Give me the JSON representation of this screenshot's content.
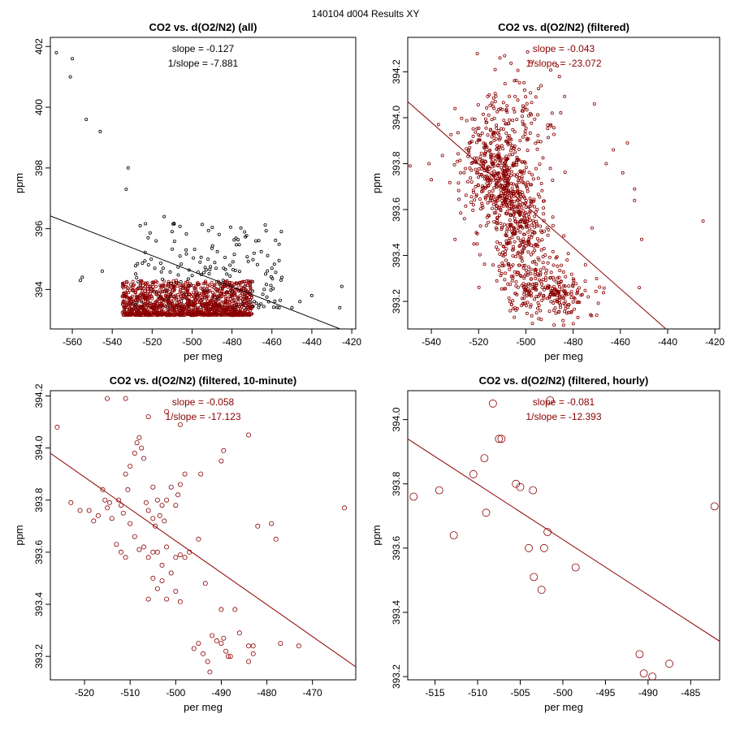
{
  "page_title": "140104   d004   Results XY",
  "colors": {
    "red": "#8b0000",
    "black": "#000000",
    "axis": "#000000"
  },
  "chart_data": [
    {
      "type": "scatter",
      "title": "CO2 vs. d(O2/N2) (all)",
      "xlabel": "per meg",
      "ylabel": "ppm",
      "xlim": [
        -571,
        -418
      ],
      "ylim": [
        392.7,
        402.3
      ],
      "xticks": [
        -560,
        -540,
        -520,
        -500,
        -480,
        -460,
        -440,
        -420
      ],
      "yticks": [
        394,
        396,
        398,
        400,
        402
      ],
      "annotations": [
        "slope = -0.127",
        "1/slope = -7.881"
      ],
      "annotation_color": "#000000",
      "fit_line": {
        "x": [
          -571,
          -418
        ],
        "y": [
          396.42,
          392.5
        ],
        "color": "#000000"
      },
      "series": [
        {
          "name": "all",
          "color": "#000000",
          "marker_size": 1.6,
          "scatter_cloud": {
            "x_range": [
              -530,
              -455
            ],
            "y_range": [
              393.4,
              396.2
            ],
            "count": 200,
            "seed": 11
          },
          "points": [
            [
              -568,
              401.8
            ],
            [
              -561,
              401.0
            ],
            [
              -560,
              401.6
            ],
            [
              -553,
              399.6
            ],
            [
              -546,
              399.2
            ],
            [
              -532,
              398.0
            ],
            [
              -533,
              397.3
            ],
            [
              -526,
              396.1
            ],
            [
              -522,
              395.7
            ],
            [
              -514,
              396.4
            ],
            [
              -555,
              394.4
            ],
            [
              -556,
              394.3
            ],
            [
              -545,
              394.6
            ],
            [
              -468,
              395.6
            ],
            [
              -425,
              394.1
            ],
            [
              -426,
              393.4
            ],
            [
              -446,
              393.6
            ],
            [
              -450,
              393.4
            ],
            [
              -460,
              394.7
            ],
            [
              -481,
              394.8
            ],
            [
              -488,
              394.7
            ],
            [
              -503,
              395.3
            ],
            [
              -510,
              395.9
            ],
            [
              -518,
              395.6
            ],
            [
              -506,
              395.1
            ],
            [
              -496,
              394.9
            ],
            [
              -492,
              395.0
            ],
            [
              -455,
              394.4
            ],
            [
              -440,
              393.8
            ]
          ]
        },
        {
          "name": "filtered",
          "color": "#8b0000",
          "marker_size": 1.6,
          "scatter_cloud": {
            "x_range": [
              -535,
              -470
            ],
            "y_range": [
              393.15,
              394.3
            ],
            "count": 1200,
            "seed": 12
          },
          "points": []
        }
      ]
    },
    {
      "type": "scatter",
      "title": "CO2 vs. d(O2/N2) (filtered)",
      "xlabel": "per meg",
      "ylabel": "ppm",
      "xlim": [
        -550,
        -418
      ],
      "ylim": [
        393.08,
        394.35
      ],
      "xticks": [
        -540,
        -520,
        -500,
        -480,
        -460,
        -440,
        -420
      ],
      "yticks": [
        393.2,
        393.4,
        393.6,
        393.8,
        394.0,
        394.2
      ],
      "annotations": [
        "slope = -0.043",
        "1/slope = -23.072"
      ],
      "annotation_color": "#8b0000",
      "fit_line": {
        "x": [
          -550,
          -438.5
        ],
        "y": [
          394.07,
          393.06
        ],
        "color": "#8b0000"
      },
      "series": [
        {
          "name": "filtered",
          "color": "#8b0000",
          "marker_size": 1.6,
          "clusters": [
            {
              "cx": -513,
              "cy": 393.76,
              "sx": 7,
              "sy": 0.12,
              "count": 380
            },
            {
              "cx": -504,
              "cy": 393.58,
              "sx": 6,
              "sy": 0.14,
              "count": 300
            },
            {
              "cx": -490,
              "cy": 393.23,
              "sx": 9,
              "sy": 0.06,
              "count": 220
            },
            {
              "cx": -505,
              "cy": 393.98,
              "sx": 10,
              "sy": 0.12,
              "count": 120
            },
            {
              "cx": -500,
              "cy": 393.38,
              "sx": 8,
              "sy": 0.08,
              "count": 90
            }
          ],
          "points": [
            [
              -549,
              393.79
            ],
            [
              -541,
              393.8
            ],
            [
              -540,
              393.73
            ],
            [
              -537,
              393.97
            ],
            [
              -530,
              394.04
            ],
            [
              -471,
              394.06
            ],
            [
              -466,
              393.8
            ],
            [
              -463,
              393.86
            ],
            [
              -459,
              393.76
            ],
            [
              -457,
              393.89
            ],
            [
              -454,
              393.64
            ],
            [
              -454,
              393.69
            ],
            [
              -451,
              393.47
            ],
            [
              -425,
              393.55
            ],
            [
              -452,
              393.26
            ],
            [
              -470,
              393.14
            ],
            [
              -478,
              393.13
            ],
            [
              -509,
              394.27
            ],
            [
              -511,
              394.26
            ],
            [
              -513,
              394.21
            ],
            [
              -526,
              393.56
            ],
            [
              -522,
              393.45
            ],
            [
              -530,
              393.47
            ],
            [
              -472,
              393.52
            ]
          ]
        }
      ]
    },
    {
      "type": "scatter",
      "title": "CO2 vs. d(O2/N2) (filtered, 10-minute)",
      "xlabel": "per meg",
      "ylabel": "ppm",
      "xlim": [
        -527.5,
        -460.5
      ],
      "ylim": [
        393.11,
        394.22
      ],
      "xticks": [
        -520,
        -510,
        -500,
        -490,
        -480,
        -470
      ],
      "yticks": [
        393.2,
        393.4,
        393.6,
        393.8,
        394.0,
        394.2
      ],
      "annotations": [
        "slope = -0.058",
        "1/slope = -17.123"
      ],
      "annotation_color": "#8b0000",
      "fit_line": {
        "x": [
          -527.5,
          -460.5
        ],
        "y": [
          393.98,
          393.16
        ],
        "color": "#8b0000"
      },
      "series": [
        {
          "name": "10-minute",
          "color": "#8b0000",
          "marker_size": 2.6,
          "points": [
            [
              -526,
              394.08
            ],
            [
              -515,
              394.19
            ],
            [
              -511,
              394.19
            ],
            [
              -506,
              394.12
            ],
            [
              -502,
              394.14
            ],
            [
              -499,
              394.09
            ],
            [
              -484,
              394.05
            ],
            [
              -523,
              393.79
            ],
            [
              -521,
              393.76
            ],
            [
              -519,
              393.76
            ],
            [
              -518,
              393.72
            ],
            [
              -517,
              393.74
            ],
            [
              -516,
              393.84
            ],
            [
              -515.5,
              393.8
            ],
            [
              -515,
              393.77
            ],
            [
              -514.5,
              393.79
            ],
            [
              -514,
              393.73
            ],
            [
              -512.5,
              393.8
            ],
            [
              -512,
              393.78
            ],
            [
              -511.5,
              393.75
            ],
            [
              -511,
              393.9
            ],
            [
              -510.5,
              393.84
            ],
            [
              -510,
              393.93
            ],
            [
              -509,
              393.98
            ],
            [
              -508.5,
              394.02
            ],
            [
              -508,
              394.04
            ],
            [
              -507.5,
              394.0
            ],
            [
              -507,
              393.96
            ],
            [
              -506.5,
              393.79
            ],
            [
              -506,
              393.76
            ],
            [
              -505,
              393.85
            ],
            [
              -505,
              393.73
            ],
            [
              -504.5,
              393.7
            ],
            [
              -504,
              393.8
            ],
            [
              -503.5,
              393.74
            ],
            [
              -503,
              393.78
            ],
            [
              -502.5,
              393.72
            ],
            [
              -502,
              393.8
            ],
            [
              -501,
              393.85
            ],
            [
              -500,
              393.78
            ],
            [
              -499.5,
              393.82
            ],
            [
              -499,
              393.86
            ],
            [
              -498,
              393.9
            ],
            [
              -510,
              393.71
            ],
            [
              -509,
              393.66
            ],
            [
              -508,
              393.61
            ],
            [
              -507,
              393.62
            ],
            [
              -506,
              393.58
            ],
            [
              -505,
              393.6
            ],
            [
              -504,
              393.6
            ],
            [
              -503,
              393.55
            ],
            [
              -502,
              393.62
            ],
            [
              -501,
              393.52
            ],
            [
              -500,
              393.58
            ],
            [
              -499,
              393.59
            ],
            [
              -498,
              393.58
            ],
            [
              -512,
              393.6
            ],
            [
              -513,
              393.63
            ],
            [
              -511,
              393.58
            ],
            [
              -505,
              393.5
            ],
            [
              -504,
              393.46
            ],
            [
              -503,
              393.49
            ],
            [
              -502,
              393.42
            ],
            [
              -500,
              393.45
            ],
            [
              -499,
              393.41
            ],
            [
              -506,
              393.42
            ],
            [
              -497,
              393.6
            ],
            [
              -495,
              393.65
            ],
            [
              -494.5,
              393.9
            ],
            [
              -490,
              393.95
            ],
            [
              -489.5,
              393.99
            ],
            [
              -482,
              393.7
            ],
            [
              -479,
              393.71
            ],
            [
              -478,
              393.65
            ],
            [
              -493.5,
              393.48
            ],
            [
              -490,
              393.38
            ],
            [
              -487,
              393.38
            ],
            [
              -463,
              393.77
            ],
            [
              -496,
              393.23
            ],
            [
              -495,
              393.25
            ],
            [
              -494,
              393.21
            ],
            [
              -493,
              393.18
            ],
            [
              -492,
              393.28
            ],
            [
              -491,
              393.26
            ],
            [
              -490,
              393.25
            ],
            [
              -489.5,
              393.27
            ],
            [
              -489,
              393.22
            ],
            [
              -488.5,
              393.2
            ],
            [
              -488,
              393.2
            ],
            [
              -486,
              393.29
            ],
            [
              -484,
              393.24
            ],
            [
              -484,
              393.18
            ],
            [
              -483,
              393.24
            ],
            [
              -483,
              393.21
            ],
            [
              -477,
              393.25
            ],
            [
              -473,
              393.24
            ],
            [
              -492.5,
              393.14
            ]
          ]
        }
      ]
    },
    {
      "type": "scatter",
      "title": "CO2 vs. d(O2/N2) (filtered, hourly)",
      "xlabel": "per meg",
      "ylabel": "ppm",
      "xlim": [
        -518.2,
        -481.6
      ],
      "ylim": [
        393.19,
        394.09
      ],
      "xticks": [
        -515,
        -510,
        -505,
        -500,
        -495,
        -490,
        -485
      ],
      "yticks": [
        393.2,
        393.4,
        393.6,
        393.8,
        394.0
      ],
      "annotations": [
        "slope = -0.081",
        "1/slope = -12.393"
      ],
      "annotation_color": "#8b0000",
      "fit_line": {
        "x": [
          -518.2,
          -481.6
        ],
        "y": [
          393.94,
          393.31
        ],
        "color": "#8b0000"
      },
      "series": [
        {
          "name": "hourly",
          "color": "#8b0000",
          "marker_size": 4.5,
          "points": [
            [
              -517.5,
              393.76
            ],
            [
              -514.5,
              393.78
            ],
            [
              -512.8,
              393.64
            ],
            [
              -510.5,
              393.83
            ],
            [
              -509.2,
              393.88
            ],
            [
              -509,
              393.71
            ],
            [
              -508.2,
              394.05
            ],
            [
              -507.5,
              393.94
            ],
            [
              -507.2,
              393.94
            ],
            [
              -505.5,
              393.8
            ],
            [
              -505,
              393.79
            ],
            [
              -504,
              393.6
            ],
            [
              -503.5,
              393.78
            ],
            [
              -503.4,
              393.51
            ],
            [
              -502.5,
              393.47
            ],
            [
              -502.2,
              393.6
            ],
            [
              -501.8,
              393.65
            ],
            [
              -501.5,
              394.06
            ],
            [
              -498.5,
              393.54
            ],
            [
              -491,
              393.27
            ],
            [
              -490.5,
              393.21
            ],
            [
              -489.5,
              393.2
            ],
            [
              -487.5,
              393.24
            ],
            [
              -482.2,
              393.73
            ]
          ]
        }
      ]
    }
  ]
}
